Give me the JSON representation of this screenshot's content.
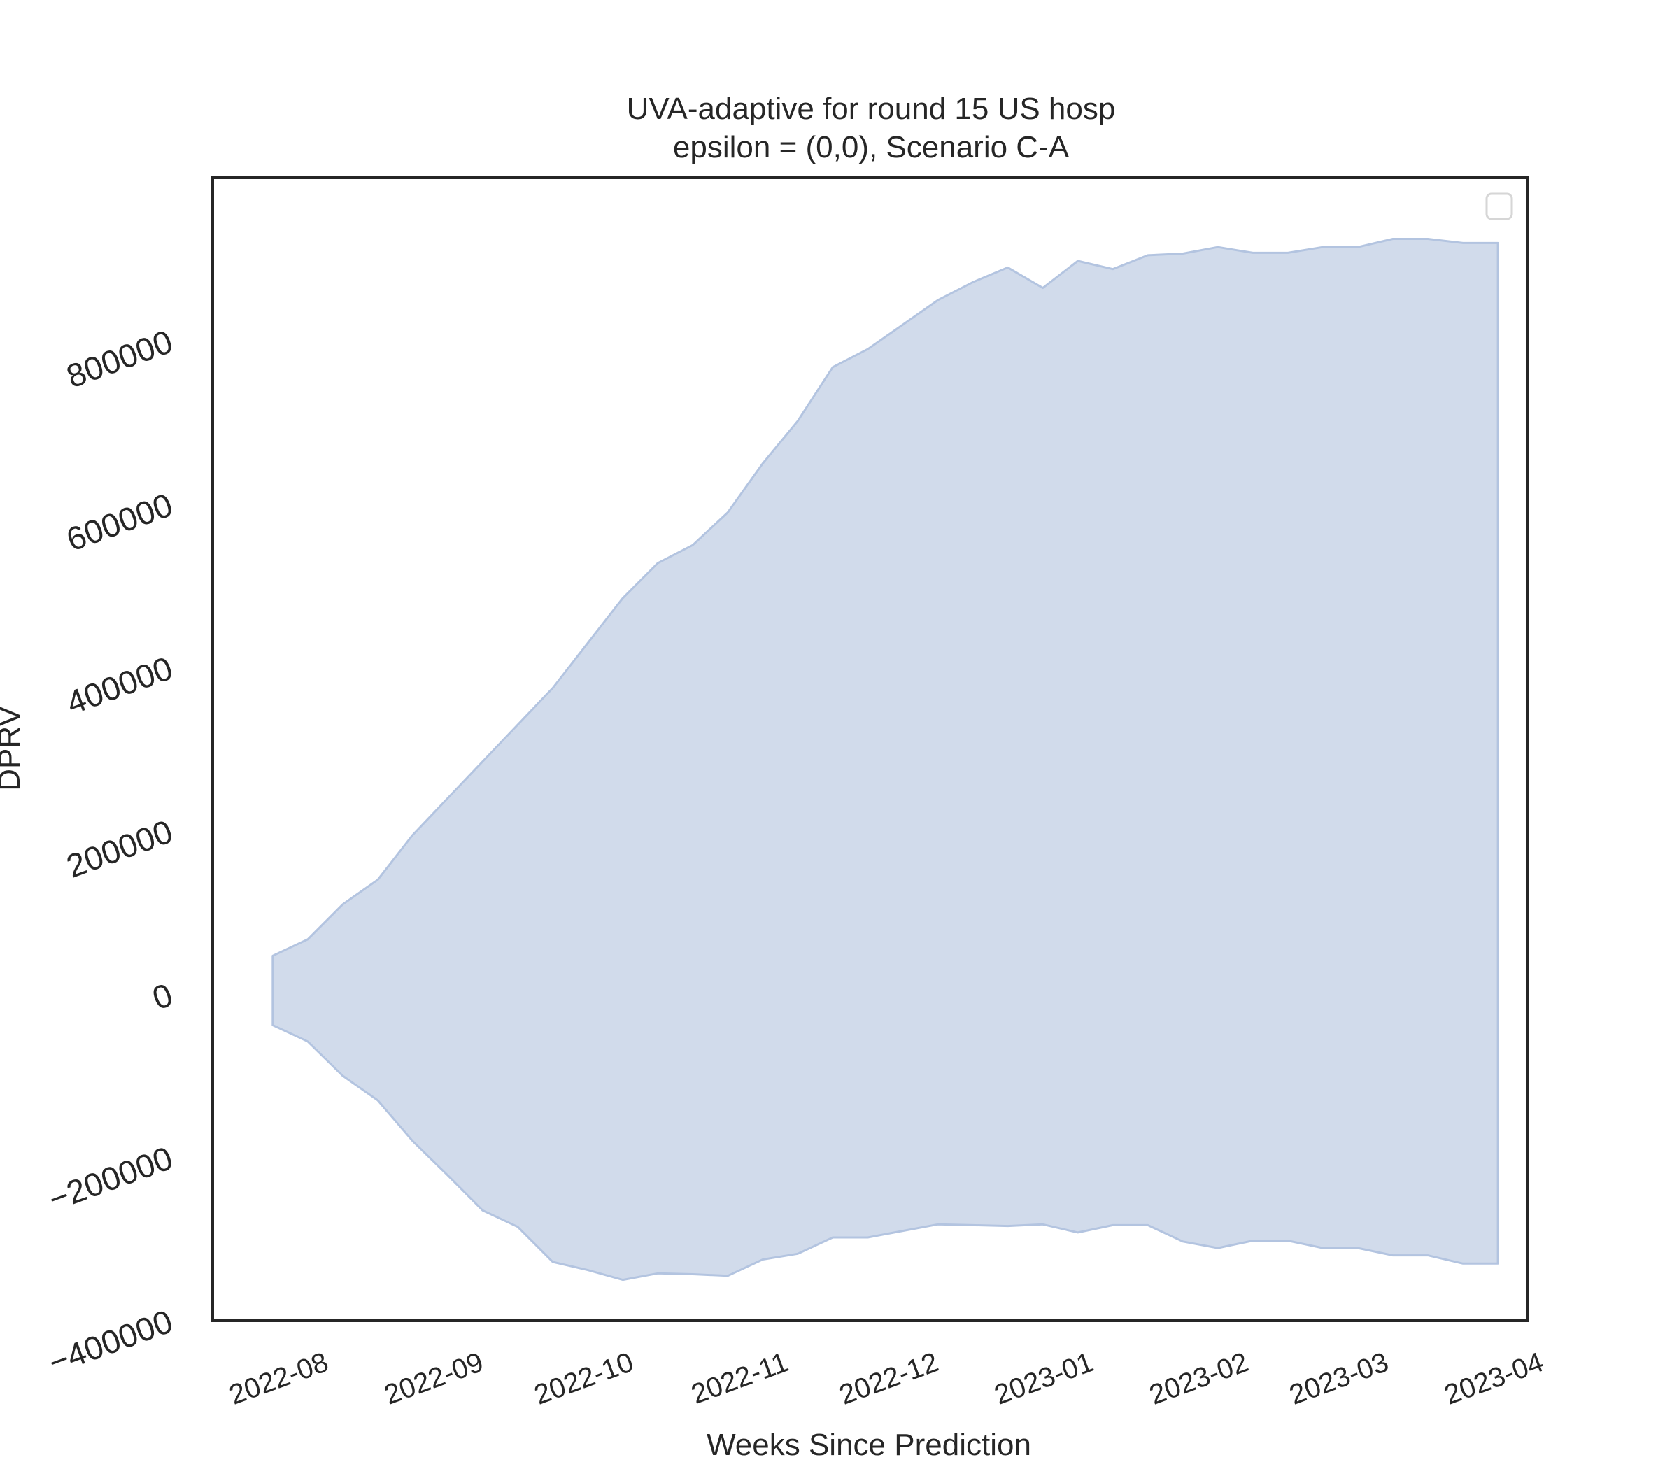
{
  "chart_data": {
    "type": "area",
    "title": "UVA-adaptive for round 15 US hosp",
    "subtitle": "epsilon = (0,0), Scenario C-A",
    "xlabel": "Weeks Since Prediction",
    "ylabel": "DPRV",
    "ylim": [
      -400000,
      1000000
    ],
    "y_ticks": [
      -400000,
      -200000,
      0,
      200000,
      400000,
      600000,
      800000
    ],
    "y_tick_labels": [
      "−400000",
      "−200000",
      "0",
      "200000",
      "400000",
      "600000",
      "800000"
    ],
    "x_ticks": [
      "2022-08-01",
      "2022-09-01",
      "2022-10-01",
      "2022-11-01",
      "2022-12-01",
      "2023-01-01",
      "2023-02-01",
      "2023-03-01",
      "2023-04-01"
    ],
    "x_tick_labels": [
      "2022-08",
      "2022-09",
      "2022-10",
      "2022-11",
      "2022-12",
      "2023-01",
      "2023-02",
      "2023-03",
      "2023-04"
    ],
    "xlim": [
      "2022-07-19",
      "2023-04-08"
    ],
    "legend": {
      "placement": "top-right",
      "entries": []
    },
    "grid": false,
    "fill_color": "#d1dbeb",
    "edge_color": "#b3c4e0",
    "x": [
      "2022-07-31",
      "2022-08-07",
      "2022-08-14",
      "2022-08-21",
      "2022-08-28",
      "2022-09-04",
      "2022-09-11",
      "2022-09-18",
      "2022-09-25",
      "2022-10-02",
      "2022-10-09",
      "2022-10-16",
      "2022-10-23",
      "2022-10-30",
      "2022-11-06",
      "2022-11-13",
      "2022-11-20",
      "2022-11-27",
      "2022-12-04",
      "2022-12-11",
      "2022-12-18",
      "2022-12-25",
      "2023-01-01",
      "2023-01-08",
      "2023-01-15",
      "2023-01-22",
      "2023-01-29",
      "2023-02-05",
      "2023-02-12",
      "2023-02-19",
      "2023-02-26",
      "2023-03-05",
      "2023-03-12",
      "2023-03-19",
      "2023-03-26",
      "2023-04-02"
    ],
    "upper": [
      47000,
      67000,
      110000,
      140000,
      195000,
      240000,
      285000,
      330000,
      375000,
      430000,
      485000,
      528000,
      550000,
      590000,
      650000,
      702000,
      768000,
      790000,
      820000,
      850000,
      872000,
      890000,
      865000,
      898000,
      888000,
      905000,
      907000,
      915000,
      908000,
      908000,
      915000,
      915000,
      925000,
      925000,
      920000,
      920000
    ],
    "lower": [
      -38000,
      -58000,
      -100000,
      -130000,
      -180000,
      -222000,
      -265000,
      -285000,
      -328000,
      -338000,
      -350000,
      -342000,
      -343000,
      -345000,
      -325000,
      -318000,
      -298000,
      -298000,
      -290000,
      -282000,
      -283000,
      -284000,
      -282000,
      -292000,
      -283000,
      -283000,
      -303000,
      -311000,
      -302000,
      -302000,
      -311000,
      -311000,
      -320000,
      -320000,
      -330000,
      -330000
    ]
  }
}
